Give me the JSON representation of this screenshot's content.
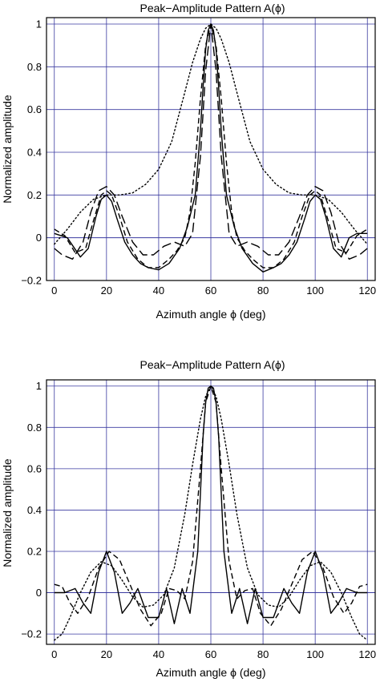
{
  "chart_data": [
    {
      "type": "line",
      "title": "Peak−Amplitude Pattern A(ϕ)",
      "xlabel": "Azimuth angle ϕ (deg)",
      "ylabel": "Normalized amplitude",
      "xlim": [
        -3,
        123
      ],
      "ylim": [
        -0.2,
        1.03
      ],
      "grid": true,
      "xticks": [
        0,
        20,
        40,
        60,
        80,
        100,
        120
      ],
      "xtick_labels": [
        "0",
        "20",
        "40",
        "60",
        "80",
        "100",
        "120"
      ],
      "yticks": [
        -0.2,
        0,
        0.2,
        0.4,
        0.6,
        0.8,
        1
      ],
      "ytick_labels": [
        "−0.2",
        "0",
        "0.2",
        "0.4",
        "0.6",
        "0.8",
        "1"
      ],
      "series": [
        {
          "style": "solid",
          "x": [
            0,
            5,
            10,
            13,
            16,
            18,
            20,
            22,
            24,
            27,
            30,
            33,
            36,
            40,
            44,
            48,
            51,
            54,
            56,
            57,
            58,
            59,
            60,
            61,
            62,
            63,
            64,
            66,
            69,
            72,
            76,
            80,
            84,
            87,
            90,
            93,
            96,
            98,
            100,
            102,
            104,
            107,
            110,
            113,
            116,
            120
          ],
          "y": [
            0.02,
            0.0,
            -0.09,
            -0.05,
            0.1,
            0.18,
            0.2,
            0.17,
            0.09,
            -0.02,
            -0.08,
            -0.12,
            -0.14,
            -0.15,
            -0.12,
            -0.05,
            0.05,
            0.2,
            0.5,
            0.7,
            0.88,
            0.97,
            1.0,
            0.97,
            0.88,
            0.7,
            0.5,
            0.2,
            0.05,
            -0.05,
            -0.12,
            -0.16,
            -0.14,
            -0.12,
            -0.08,
            -0.02,
            0.09,
            0.17,
            0.2,
            0.18,
            0.1,
            -0.05,
            -0.09,
            0.0,
            0.02,
            0.02
          ]
        },
        {
          "style": "dashed",
          "x": [
            0,
            4,
            8,
            12,
            15,
            18,
            20,
            22,
            25,
            28,
            32,
            36,
            40,
            44,
            47,
            50,
            52,
            54,
            56,
            58,
            60,
            62,
            64,
            66,
            68,
            70,
            73,
            76,
            80,
            84,
            88,
            92,
            95,
            98,
            100,
            102,
            105,
            108,
            112,
            116,
            120
          ],
          "y": [
            0.04,
            0.01,
            -0.07,
            -0.05,
            0.08,
            0.2,
            0.22,
            0.2,
            0.1,
            -0.02,
            -0.1,
            -0.14,
            -0.14,
            -0.1,
            -0.06,
            0.0,
            0.12,
            0.35,
            0.65,
            0.9,
            1.0,
            0.9,
            0.65,
            0.35,
            0.12,
            0.0,
            -0.06,
            -0.1,
            -0.14,
            -0.14,
            -0.1,
            -0.02,
            0.1,
            0.2,
            0.22,
            0.2,
            0.08,
            -0.05,
            -0.07,
            0.01,
            0.04
          ]
        },
        {
          "style": "long-dash",
          "x": [
            0,
            3,
            7,
            11,
            14,
            17,
            20,
            23,
            26,
            30,
            34,
            38,
            42,
            46,
            50,
            53,
            56,
            58,
            60,
            62,
            64,
            67,
            70,
            74,
            78,
            82,
            86,
            90,
            94,
            97,
            100,
            103,
            106,
            109,
            113,
            117,
            120
          ],
          "y": [
            -0.05,
            -0.08,
            -0.1,
            -0.02,
            0.12,
            0.22,
            0.24,
            0.2,
            0.1,
            -0.02,
            -0.08,
            -0.08,
            -0.04,
            -0.02,
            -0.04,
            0.02,
            0.38,
            0.78,
            1.0,
            0.78,
            0.38,
            0.02,
            -0.04,
            -0.02,
            -0.04,
            -0.08,
            -0.08,
            -0.02,
            0.1,
            0.2,
            0.24,
            0.22,
            0.12,
            -0.02,
            -0.1,
            -0.08,
            -0.05
          ]
        },
        {
          "style": "dotted",
          "x": [
            0,
            5,
            10,
            15,
            20,
            25,
            30,
            35,
            40,
            45,
            50,
            53,
            56,
            58,
            60,
            62,
            64,
            67,
            70,
            75,
            80,
            85,
            90,
            95,
            100,
            105,
            110,
            115,
            120
          ],
          "y": [
            -0.03,
            0.04,
            0.12,
            0.18,
            0.2,
            0.2,
            0.21,
            0.25,
            0.32,
            0.45,
            0.68,
            0.82,
            0.93,
            0.98,
            1.0,
            0.98,
            0.93,
            0.82,
            0.68,
            0.45,
            0.32,
            0.25,
            0.21,
            0.2,
            0.2,
            0.18,
            0.12,
            0.04,
            -0.03
          ]
        }
      ]
    },
    {
      "type": "line",
      "title": "Peak−Amplitude Pattern A(ϕ)",
      "xlabel": "Azimuth angle ϕ (deg)",
      "ylabel": "Normalized amplitude",
      "xlim": [
        -3,
        123
      ],
      "ylim": [
        -0.25,
        1.03
      ],
      "grid": true,
      "xticks": [
        0,
        20,
        40,
        60,
        80,
        100,
        120
      ],
      "xtick_labels": [
        "0",
        "20",
        "40",
        "60",
        "80",
        "100",
        "120"
      ],
      "yticks": [
        -0.2,
        0,
        0.2,
        0.4,
        0.6,
        0.8,
        1
      ],
      "ytick_labels": [
        "−0.2",
        "0",
        "0.2",
        "0.4",
        "0.6",
        "0.8",
        "1"
      ],
      "series": [
        {
          "style": "solid",
          "x": [
            0,
            4,
            8,
            11,
            14,
            17,
            20,
            23,
            26,
            29,
            32,
            36,
            40,
            43,
            46,
            49,
            52,
            55,
            57,
            58,
            59,
            60,
            61,
            62,
            63,
            65,
            68,
            71,
            74,
            77,
            80,
            84,
            88,
            91,
            94,
            97,
            100,
            103,
            106,
            109,
            112,
            116,
            120
          ],
          "y": [
            0.0,
            0.0,
            0.02,
            -0.05,
            -0.1,
            0.1,
            0.2,
            0.1,
            -0.1,
            -0.05,
            0.02,
            -0.12,
            -0.12,
            0.02,
            -0.15,
            0.02,
            -0.1,
            0.2,
            0.75,
            0.92,
            0.99,
            1.0,
            0.99,
            0.92,
            0.75,
            0.2,
            -0.1,
            0.02,
            -0.15,
            0.02,
            -0.12,
            -0.12,
            0.02,
            -0.05,
            -0.1,
            0.1,
            0.2,
            0.1,
            -0.1,
            -0.05,
            0.02,
            0.0,
            0.0
          ]
        },
        {
          "style": "dashed",
          "x": [
            0,
            3,
            6,
            9,
            13,
            17,
            21,
            25,
            29,
            33,
            37,
            41,
            44,
            47,
            50,
            53,
            56,
            58,
            60,
            62,
            64,
            67,
            70,
            73,
            76,
            79,
            83,
            87,
            91,
            95,
            99,
            103,
            107,
            111,
            114,
            117,
            120
          ],
          "y": [
            0.04,
            0.03,
            -0.05,
            -0.1,
            -0.02,
            0.12,
            0.2,
            0.16,
            0.04,
            -0.08,
            -0.16,
            -0.1,
            0.02,
            0.01,
            -0.03,
            0.15,
            0.6,
            0.92,
            1.0,
            0.92,
            0.6,
            0.15,
            -0.03,
            0.01,
            0.02,
            -0.1,
            -0.16,
            -0.08,
            0.04,
            0.16,
            0.2,
            0.12,
            -0.02,
            -0.1,
            -0.05,
            0.03,
            0.04
          ]
        },
        {
          "style": "dotted",
          "x": [
            0,
            3,
            6,
            10,
            14,
            18,
            22,
            26,
            30,
            34,
            38,
            42,
            46,
            50,
            53,
            56,
            58,
            60,
            62,
            64,
            67,
            70,
            74,
            78,
            82,
            86,
            90,
            94,
            98,
            102,
            106,
            110,
            114,
            117,
            120
          ],
          "y": [
            -0.23,
            -0.2,
            -0.12,
            0.0,
            0.1,
            0.15,
            0.13,
            0.06,
            -0.02,
            -0.07,
            -0.06,
            -0.01,
            0.12,
            0.38,
            0.62,
            0.84,
            0.95,
            1.0,
            0.95,
            0.84,
            0.62,
            0.38,
            0.12,
            -0.01,
            -0.06,
            -0.07,
            -0.02,
            0.06,
            0.13,
            0.15,
            0.1,
            0.0,
            -0.12,
            -0.2,
            -0.23
          ]
        }
      ]
    }
  ]
}
